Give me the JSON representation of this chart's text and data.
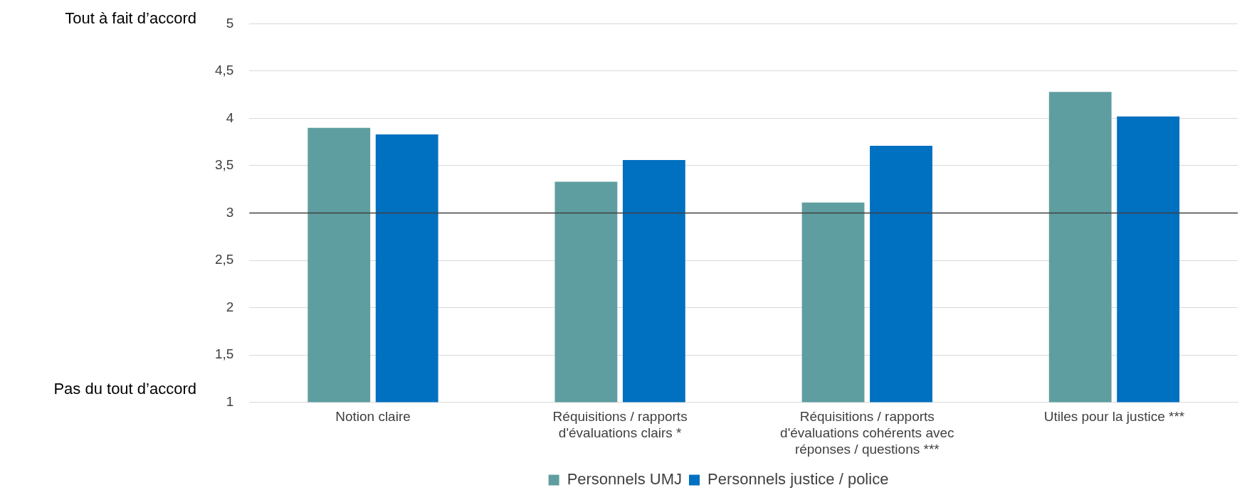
{
  "chart_data": {
    "type": "bar",
    "categories": [
      "Notion claire",
      "Réquisitions / rapports d'évaluations clairs *",
      "Réquisitions / rapports d'évaluations cohérents avec réponses / questions ***",
      "Utiles pour la justice ***"
    ],
    "series": [
      {
        "name": "Personnels UMJ",
        "color": "#5f9ea0",
        "values": [
          3.9,
          3.33,
          3.11,
          4.28
        ]
      },
      {
        "name": "Personnels justice / police",
        "color": "#0070c0",
        "values": [
          3.83,
          3.56,
          3.71,
          4.02
        ]
      }
    ],
    "ylim": [
      1,
      5
    ],
    "yticks": [
      1,
      {
        "value": 1.5,
        "label": "1,5"
      },
      2,
      {
        "value": 2.5,
        "label": "2,5"
      },
      3,
      {
        "value": 3.5,
        "label": "3,5"
      },
      4,
      {
        "value": 4.5,
        "label": "4,5"
      },
      5
    ],
    "grid": "y",
    "legend": "bottom",
    "ref_lines": [
      {
        "axis": "y",
        "value": 3,
        "color": "#404040"
      }
    ],
    "annotations": [
      "Tout à fait d’accord",
      "Pas du tout d’accord"
    ]
  }
}
